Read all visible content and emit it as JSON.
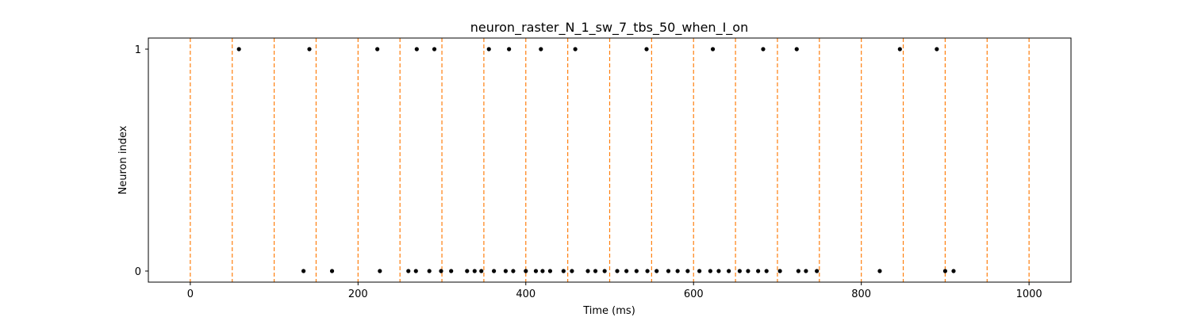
{
  "chart_data": {
    "type": "scatter",
    "title": "neuron_raster_N_1_sw_7_tbs_50_when_I_on",
    "xlabel": "Time (ms)",
    "ylabel": "Neuron index",
    "xlim": [
      -50,
      1050
    ],
    "ylim": [
      -0.05,
      1.05
    ],
    "xticks": [
      0,
      200,
      400,
      600,
      800,
      1000
    ],
    "xtick_labels": [
      "0",
      "200",
      "400",
      "600",
      "800",
      "1000"
    ],
    "yticks": [
      0,
      1
    ],
    "ytick_labels": [
      "0",
      "1"
    ],
    "grid": false,
    "marker_color": "#000000",
    "marker_line_color": "#ff7f0e",
    "marker_lines": [
      0,
      50,
      100,
      150,
      200,
      250,
      300,
      350,
      400,
      450,
      500,
      550,
      600,
      650,
      700,
      750,
      800,
      850,
      900,
      950,
      1000
    ],
    "series": [
      {
        "neuron": 1,
        "x": [
          58,
          142,
          223,
          270,
          291,
          356,
          380,
          418,
          459,
          544,
          623,
          683,
          723,
          846,
          890
        ]
      },
      {
        "neuron": 0,
        "x": [
          135,
          169,
          226,
          260,
          269,
          285,
          299,
          311,
          330,
          339,
          347,
          362,
          376,
          385,
          400,
          412,
          420,
          429,
          445,
          455,
          474,
          483,
          494,
          509,
          520,
          532,
          545,
          556,
          570,
          581,
          593,
          607,
          620,
          630,
          642,
          655,
          665,
          677,
          687,
          703,
          725,
          734,
          747,
          822,
          900,
          910
        ]
      }
    ]
  }
}
